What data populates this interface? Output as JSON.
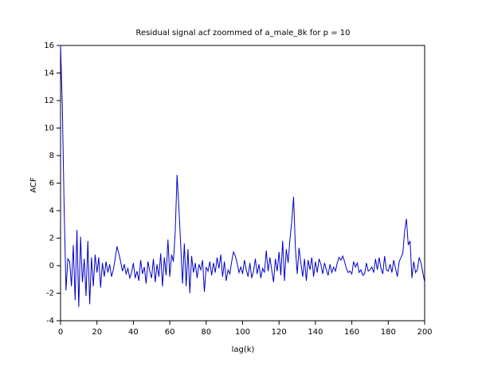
{
  "chart_data": {
    "type": "line",
    "title": "Residual signal acf zoommed of a_male_8k for p = 10",
    "x_label": "lag(k)",
    "y_label": "ACF",
    "xlim": [
      0,
      200
    ],
    "ylim": [
      -4,
      16
    ],
    "xticks": [
      0,
      20,
      40,
      60,
      80,
      100,
      120,
      140,
      160,
      180,
      200
    ],
    "yticks": [
      -4,
      -2,
      0,
      2,
      4,
      6,
      8,
      10,
      12,
      14,
      16
    ],
    "x": [
      0,
      1,
      2,
      3,
      4,
      5,
      6,
      7,
      8,
      9,
      10,
      11,
      12,
      13,
      14,
      15,
      16,
      17,
      18,
      19,
      20,
      21,
      22,
      23,
      24,
      25,
      26,
      27,
      28,
      29,
      30,
      31,
      32,
      33,
      34,
      35,
      36,
      37,
      38,
      39,
      40,
      41,
      42,
      43,
      44,
      45,
      46,
      47,
      48,
      49,
      50,
      51,
      52,
      53,
      54,
      55,
      56,
      57,
      58,
      59,
      60,
      61,
      62,
      63,
      64,
      65,
      66,
      67,
      68,
      69,
      70,
      71,
      72,
      73,
      74,
      75,
      76,
      77,
      78,
      79,
      80,
      81,
      82,
      83,
      84,
      85,
      86,
      87,
      88,
      89,
      90,
      91,
      92,
      93,
      94,
      95,
      96,
      97,
      98,
      99,
      100,
      101,
      102,
      103,
      104,
      105,
      106,
      107,
      108,
      109,
      110,
      111,
      112,
      113,
      114,
      115,
      116,
      117,
      118,
      119,
      120,
      121,
      122,
      123,
      124,
      125,
      126,
      127,
      128,
      129,
      130,
      131,
      132,
      133,
      134,
      135,
      136,
      137,
      138,
      139,
      140,
      141,
      142,
      143,
      144,
      145,
      146,
      147,
      148,
      149,
      150,
      151,
      152,
      153,
      154,
      155,
      156,
      157,
      158,
      159,
      160,
      161,
      162,
      163,
      164,
      165,
      166,
      167,
      168,
      169,
      170,
      171,
      172,
      173,
      174,
      175,
      176,
      177,
      178,
      179,
      180,
      181,
      182,
      183,
      184,
      185,
      186,
      187,
      188,
      189,
      190,
      191,
      192,
      193,
      194,
      195,
      196,
      197,
      198,
      199,
      200
    ],
    "series": [
      {
        "color": "#0000c8",
        "values": [
          16,
          11.5,
          4,
          -1.8,
          0.5,
          0.3,
          -1.5,
          1.5,
          -2.5,
          2.6,
          -3,
          2.1,
          -1.2,
          0.5,
          -2.2,
          1.8,
          -2.8,
          0.6,
          -1.5,
          0.8,
          -0.5,
          0.6,
          -1.6,
          0.2,
          -0.8,
          0.3,
          -0.5,
          0.1,
          -0.8,
          -0.3,
          0.5,
          1.4,
          0.9,
          0.3,
          -0.4,
          0.1,
          -0.6,
          -0.2,
          -0.9,
          -0.5,
          0.2,
          -0.9,
          -0.4,
          -1.1,
          0.4,
          -0.6,
          -0.1,
          -1.3,
          0.3,
          -0.4,
          -0.9,
          0.5,
          -1.2,
          0.1,
          -0.8,
          0.9,
          -1.5,
          0.6,
          -0.7,
          1.9,
          -0.8,
          0.8,
          0.3,
          2.5,
          6.6,
          4.2,
          1.5,
          -1.3,
          1.6,
          -1.5,
          1.2,
          -2,
          0.7,
          -0.5,
          0.2,
          -0.9,
          0.1,
          -0.3,
          0.4,
          -1.9,
          -0.1,
          -0.4,
          0.3,
          -0.7,
          0.2,
          -0.5,
          0.6,
          -0.2,
          0.8,
          -0.8,
          0.3,
          -1.1,
          -0.3,
          -0.6,
          0.3,
          1.0,
          0.7,
          0.2,
          -0.5,
          -0.1,
          -0.6,
          0.4,
          -0.3,
          -0.8,
          0.2,
          -0.9,
          -0.4,
          0.5,
          -0.6,
          0.1,
          -0.9,
          -0.2,
          -0.5,
          1.1,
          -0.4,
          0.6,
          -0.3,
          -1.2,
          0.5,
          -0.4,
          1.0,
          -0.7,
          1.8,
          -1.1,
          1.2,
          0.2,
          1.9,
          3.2,
          5.0,
          1.3,
          -0.6,
          1.3,
          0.2,
          -0.8,
          0.5,
          -1.1,
          0.4,
          -0.3,
          0.6,
          -0.8,
          0.3,
          -0.5,
          0.5,
          0.1,
          -0.6,
          0.2,
          -0.3,
          -0.7,
          0.1,
          -0.5,
          -0.1,
          -0.4,
          0.2,
          0.6,
          0.4,
          0.7,
          0.3,
          -0.2,
          -0.5,
          -0.4,
          -0.6,
          0.3,
          -0.1,
          0.2,
          -0.5,
          -0.3,
          -0.7,
          -0.6,
          0.2,
          -0.4,
          -0.3,
          -0.1,
          -0.5,
          0.5,
          -0.3,
          0.6,
          -0.2,
          -0.6,
          0.7,
          -0.3,
          -0.4,
          0.1,
          -0.5,
          0.4,
          -0.2,
          -0.8,
          0.3,
          0.6,
          0.9,
          2.5,
          3.4,
          1.5,
          1.8,
          -0.9,
          0.3,
          -0.5,
          -0.3,
          0.6,
          0.2,
          -0.5,
          -1.2
        ]
      }
    ]
  }
}
